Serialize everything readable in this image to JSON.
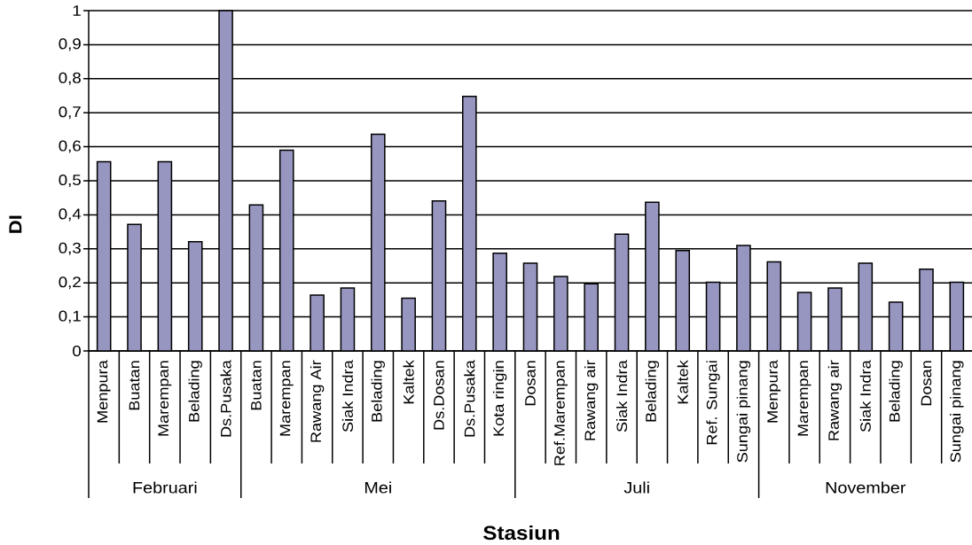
{
  "chart_data": {
    "type": "bar",
    "xlabel": "Stasiun",
    "ylabel": "DI",
    "categories": [
      "Menpura",
      "Buatan",
      "Marempan",
      "Belading",
      "Ds.Pusaka",
      "Buatan",
      "Marempan",
      "Rawang Air",
      "Siak Indra",
      "Belading",
      "Kaltek",
      "Ds.Dosan",
      "Ds.Pusaka",
      "Kota ringin",
      "Dosan",
      "Ref.Marempan",
      "Rawang air",
      "Siak Indra",
      "Belading",
      "Kaltek",
      "Ref. Sungai",
      "Sungai pinang",
      "Menpura",
      "Marempan",
      "Rawang air",
      "Siak Indra",
      "Belading",
      "Dosan",
      "Sungai pinang"
    ],
    "series": [
      {
        "color": "#9696c0",
        "values": [
          0.556,
          0.372,
          0.556,
          0.321,
          1,
          null,
          null,
          null,
          null,
          null,
          null,
          null,
          null,
          null,
          null,
          null,
          null,
          null,
          null,
          null,
          null,
          null,
          null,
          null,
          null,
          null,
          null,
          null,
          null
        ]
      },
      {
        "color": "#9696c0",
        "values": [
          null,
          null,
          null,
          null,
          null,
          0.429,
          0.59,
          0.164,
          0.185,
          0.637,
          0.155,
          0.441,
          0.748,
          0.287,
          null,
          null,
          null,
          null,
          null,
          null,
          null,
          null,
          null,
          null,
          null,
          null,
          null,
          null,
          null
        ]
      },
      {
        "color": "#9696c0",
        "values": [
          null,
          null,
          null,
          null,
          null,
          null,
          null,
          null,
          null,
          null,
          null,
          null,
          null,
          null,
          0.258,
          0.219,
          0.197,
          0.343,
          0.437,
          0.295,
          0.202,
          0.31,
          null,
          null,
          null,
          null,
          null,
          null,
          null
        ]
      },
      {
        "color": "#9696c0",
        "values": [
          null,
          null,
          null,
          null,
          null,
          null,
          null,
          null,
          null,
          null,
          null,
          null,
          null,
          null,
          null,
          null,
          null,
          null,
          null,
          null,
          null,
          null,
          0.262,
          0.172,
          0.185,
          0.258,
          0.143,
          0.24,
          0.202
        ]
      }
    ],
    "annotations": [
      "Februari",
      "Mei",
      "Juli",
      "November"
    ],
    "ylim": [
      0,
      1
    ],
    "yticks": [
      0,
      {
        "value": 0.1,
        "label": "0,1"
      },
      {
        "value": 0.2,
        "label": "0,2"
      },
      {
        "value": 0.3,
        "label": "0,3"
      },
      {
        "value": 0.4,
        "label": "0,4"
      },
      {
        "value": 0.5,
        "label": "0,5"
      },
      {
        "value": 0.6,
        "label": "0,6"
      },
      {
        "value": 0.7,
        "label": "0,7"
      },
      {
        "value": 0.8,
        "label": "0,8"
      },
      {
        "value": 0.9,
        "label": "0,9"
      },
      1
    ],
    "grid": "y"
  }
}
